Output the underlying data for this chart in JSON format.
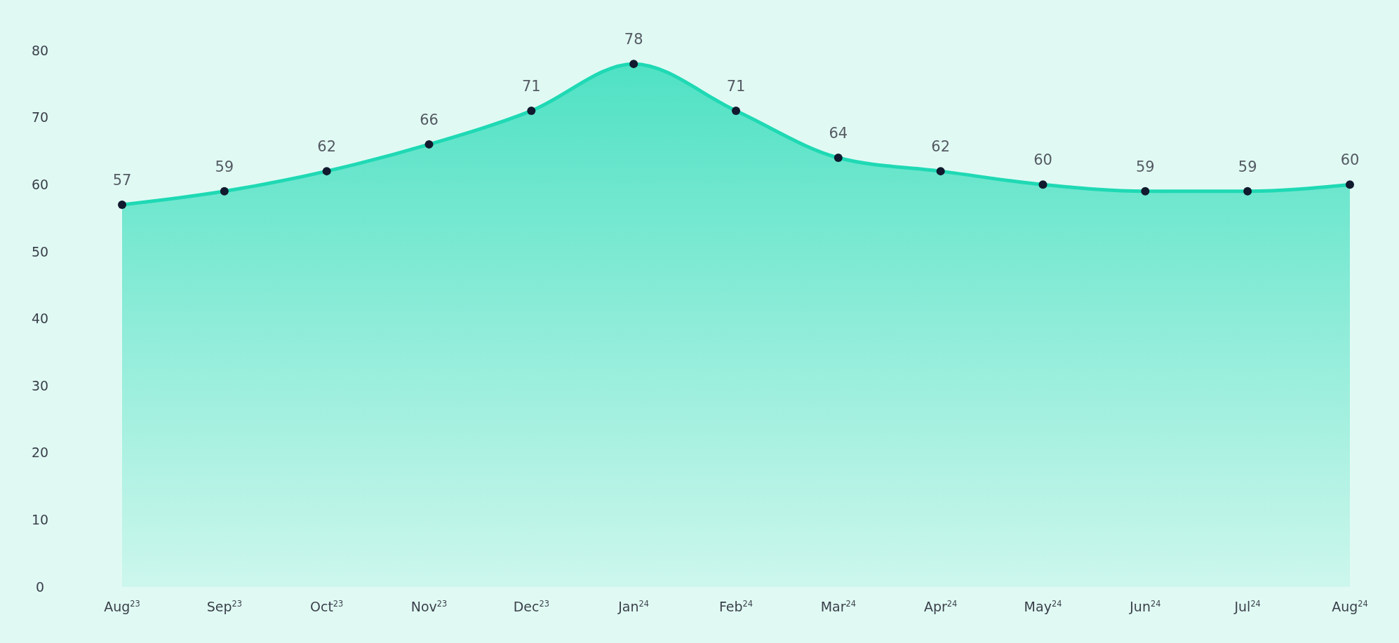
{
  "chart_data": {
    "type": "area",
    "categories": [
      "Aug$^{23}$",
      "Sep$^{23}$",
      "Oct$^{23}$",
      "Nov$^{23}$",
      "Dec$^{23}$",
      "Jan$^{24}$",
      "Feb$^{24}$",
      "Mar$^{24}$",
      "Apr$^{24}$",
      "May$^{24}$",
      "Jun$^{24}$",
      "Jul$^{24}$",
      "Aug$^{24}$"
    ],
    "series": [
      {
        "color": "#1fd9b4",
        "values": [
          57,
          59,
          62,
          66,
          71,
          78,
          71,
          64,
          62,
          60,
          59,
          59,
          60
        ]
      }
    ],
    "ylim": [
      0,
      80
    ],
    "yticks": [
      0,
      10,
      20,
      30,
      40,
      50,
      60,
      70,
      80
    ],
    "grid": false,
    "data_labels": true,
    "marker": "circle"
  }
}
